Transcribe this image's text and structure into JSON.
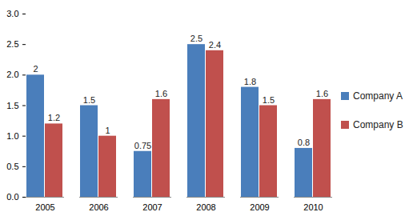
{
  "chart_data": {
    "type": "bar",
    "categories": [
      "2005",
      "2006",
      "2007",
      "2008",
      "2009",
      "2010"
    ],
    "series": [
      {
        "name": "Company A",
        "color": "#4a7ebb",
        "values": [
          2,
          1.5,
          0.75,
          2.5,
          1.8,
          0.8
        ]
      },
      {
        "name": "Company B",
        "color": "#c0504d",
        "values": [
          1.2,
          1,
          1.6,
          2.4,
          1.5,
          1.6
        ]
      }
    ],
    "ylim": [
      0,
      3
    ],
    "yticks": [
      0,
      0.5,
      1,
      1.5,
      2,
      2.5,
      3
    ],
    "grid": false,
    "legend": "right",
    "data_labels": true
  }
}
